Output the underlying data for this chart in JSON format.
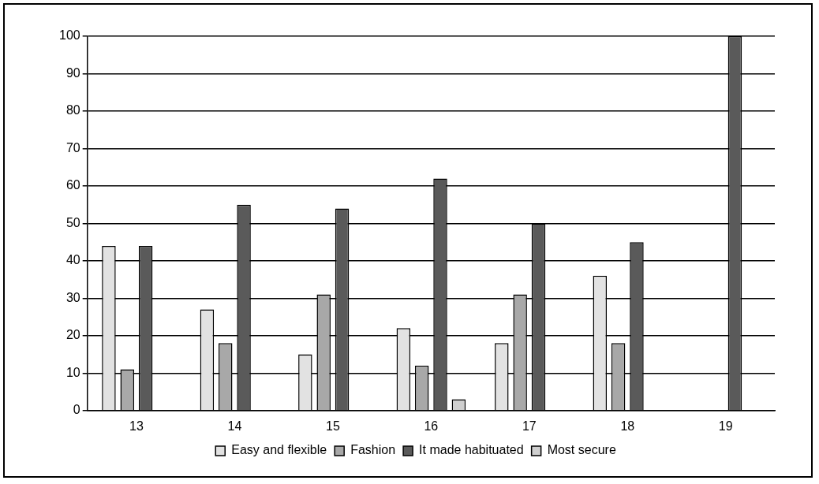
{
  "chart_data": {
    "type": "bar",
    "categories": [
      "13",
      "14",
      "15",
      "16",
      "17",
      "18",
      "19"
    ],
    "series": [
      {
        "name": "Easy and flexible",
        "color": "#e2e2e2",
        "values": [
          44,
          27,
          15,
          22,
          18,
          36,
          0
        ]
      },
      {
        "name": "Fashion",
        "color": "#a8a8a8",
        "values": [
          11,
          18,
          31,
          12,
          31,
          18,
          0
        ]
      },
      {
        "name": "It made habituated",
        "color": "#5a5a5a",
        "values": [
          44,
          55,
          54,
          62,
          50,
          45,
          100
        ]
      },
      {
        "name": "Most secure",
        "color": "#cfcfcf",
        "values": [
          0,
          0,
          0,
          3,
          0,
          0,
          0
        ]
      }
    ],
    "ylim": [
      0,
      100
    ],
    "yticks": [
      0,
      10,
      20,
      30,
      40,
      50,
      60,
      70,
      80,
      90,
      100
    ],
    "grid": "y",
    "legend": "bottom"
  }
}
